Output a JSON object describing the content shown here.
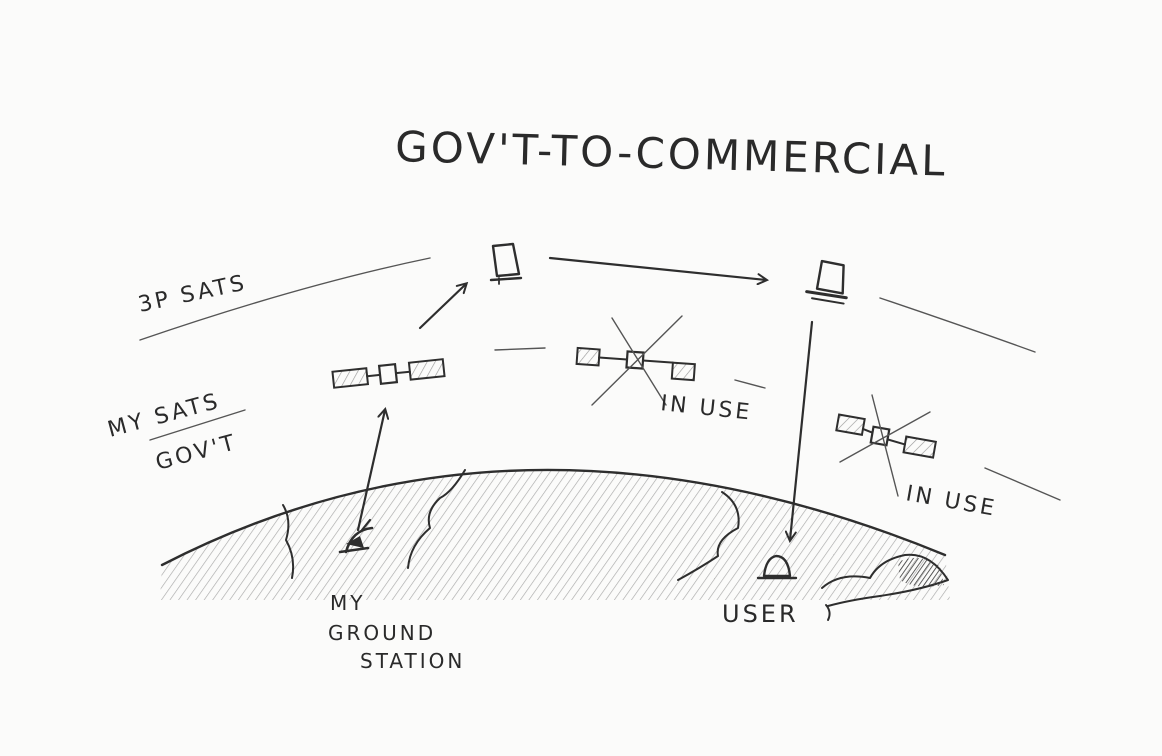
{
  "title": "GOV'T-TO-COMMERCIAL",
  "orbits": {
    "outer_label": "3P SATS",
    "inner_label_top": "MY SATS",
    "inner_label_bottom": "GOV'T"
  },
  "satellites": {
    "in_use_label_1": "IN USE",
    "in_use_label_2": "IN USE"
  },
  "ground": {
    "station_label_line1": "MY",
    "station_label_line2": "GROUND",
    "station_label_line3": "STATION",
    "user_label": "USER"
  },
  "colors": {
    "pencil": "#2e2e2e",
    "paper": "#fbfbfa",
    "shade": "#8a8a8a"
  },
  "icons": [
    "satellite-icon",
    "ground-station-dish-icon",
    "user-terminal-icon",
    "cross-out-icon",
    "arrow-icon"
  ]
}
